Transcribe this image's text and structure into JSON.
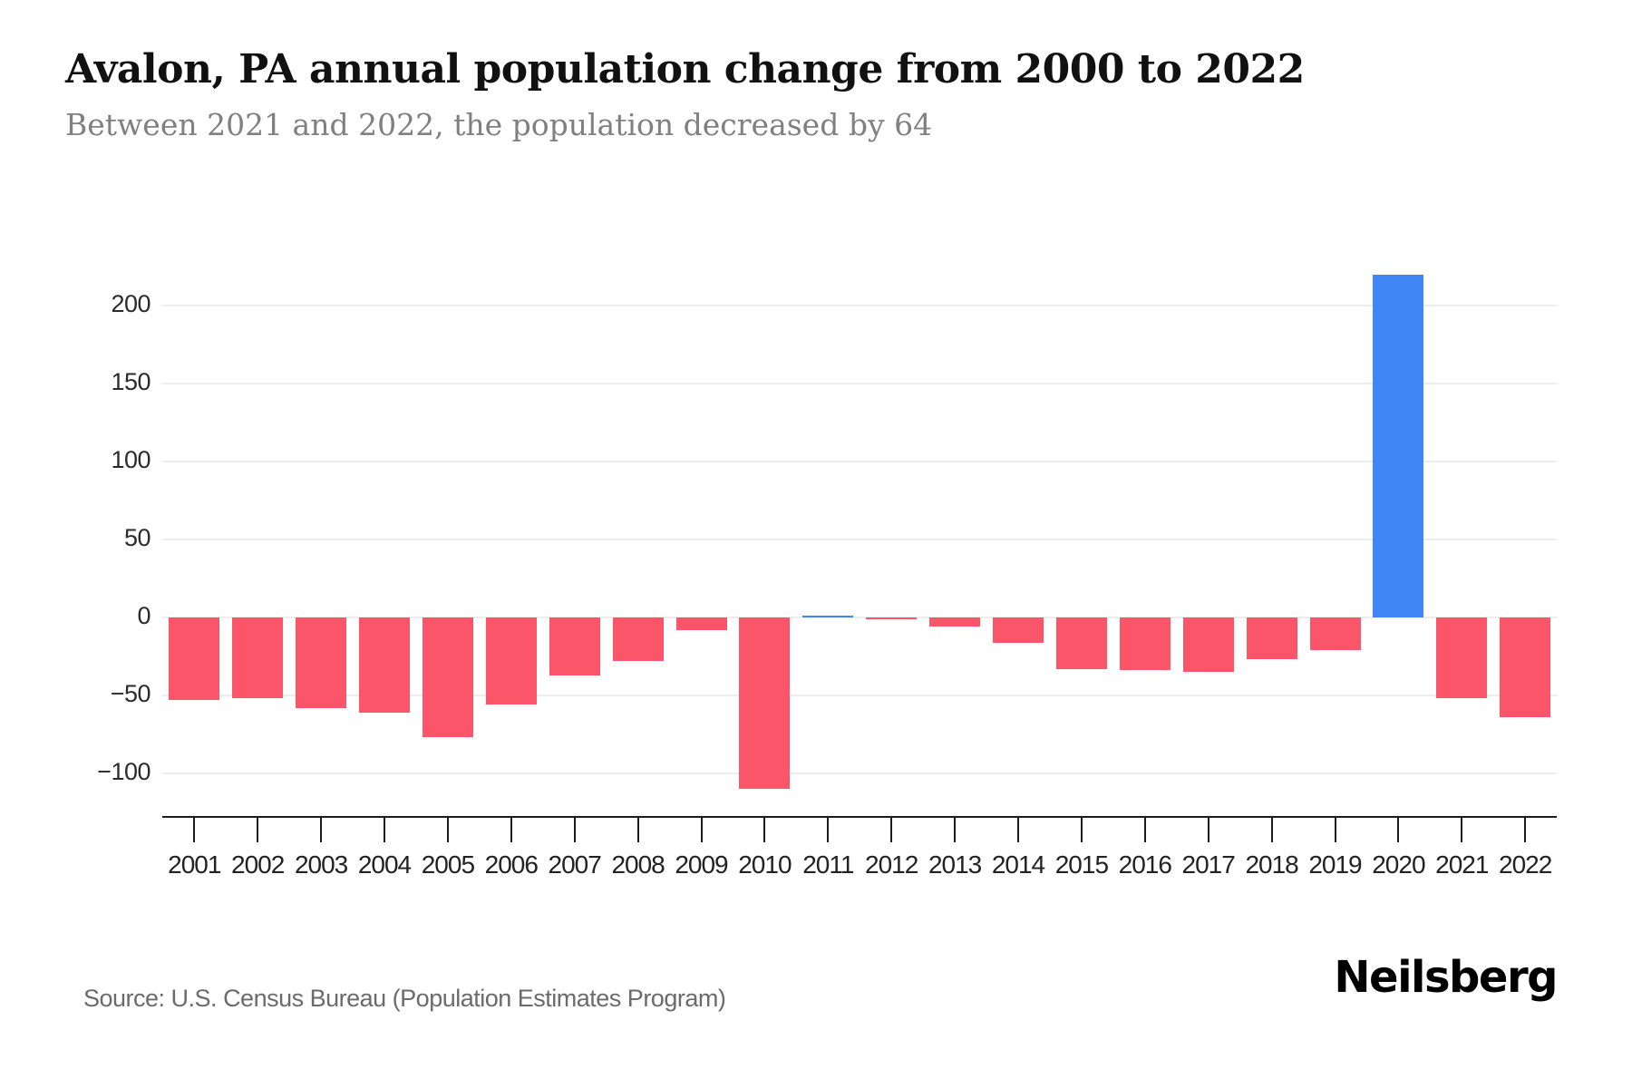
{
  "header": {
    "title": "Avalon, PA annual population change from 2000 to 2022",
    "subtitle": "Between 2021 and 2022, the population decreased by 64"
  },
  "chart_data": {
    "type": "bar",
    "title": "Avalon, PA annual population change from 2000 to 2022",
    "subtitle": "Between 2021 and 2022, the population decreased by 64",
    "categories": [
      "2001",
      "2002",
      "2003",
      "2004",
      "2005",
      "2006",
      "2007",
      "2008",
      "2009",
      "2010",
      "2011",
      "2012",
      "2013",
      "2014",
      "2015",
      "2016",
      "2017",
      "2018",
      "2019",
      "2020",
      "2021",
      "2022"
    ],
    "values": [
      -53,
      -52,
      -58,
      -61,
      -77,
      -56,
      -37,
      -28,
      -8,
      -110,
      1,
      -1,
      -6,
      -16,
      -33,
      -34,
      -35,
      -27,
      -21,
      220,
      -52,
      -64
    ],
    "xlabel": "",
    "ylabel": "",
    "yticks": [
      200,
      150,
      100,
      50,
      0,
      -50,
      -100
    ],
    "ylim": [
      -128,
      221
    ],
    "grid": "horizontal",
    "legend": "none",
    "colors": {
      "negative_bar": "#fa5569",
      "positive_bar": "#4285f4",
      "gridline": "#ededed",
      "axis": "#1c1c1c"
    }
  },
  "footer": {
    "source": "Source: U.S. Census Bureau (Population Estimates Program)",
    "brand": "Neilsberg"
  }
}
